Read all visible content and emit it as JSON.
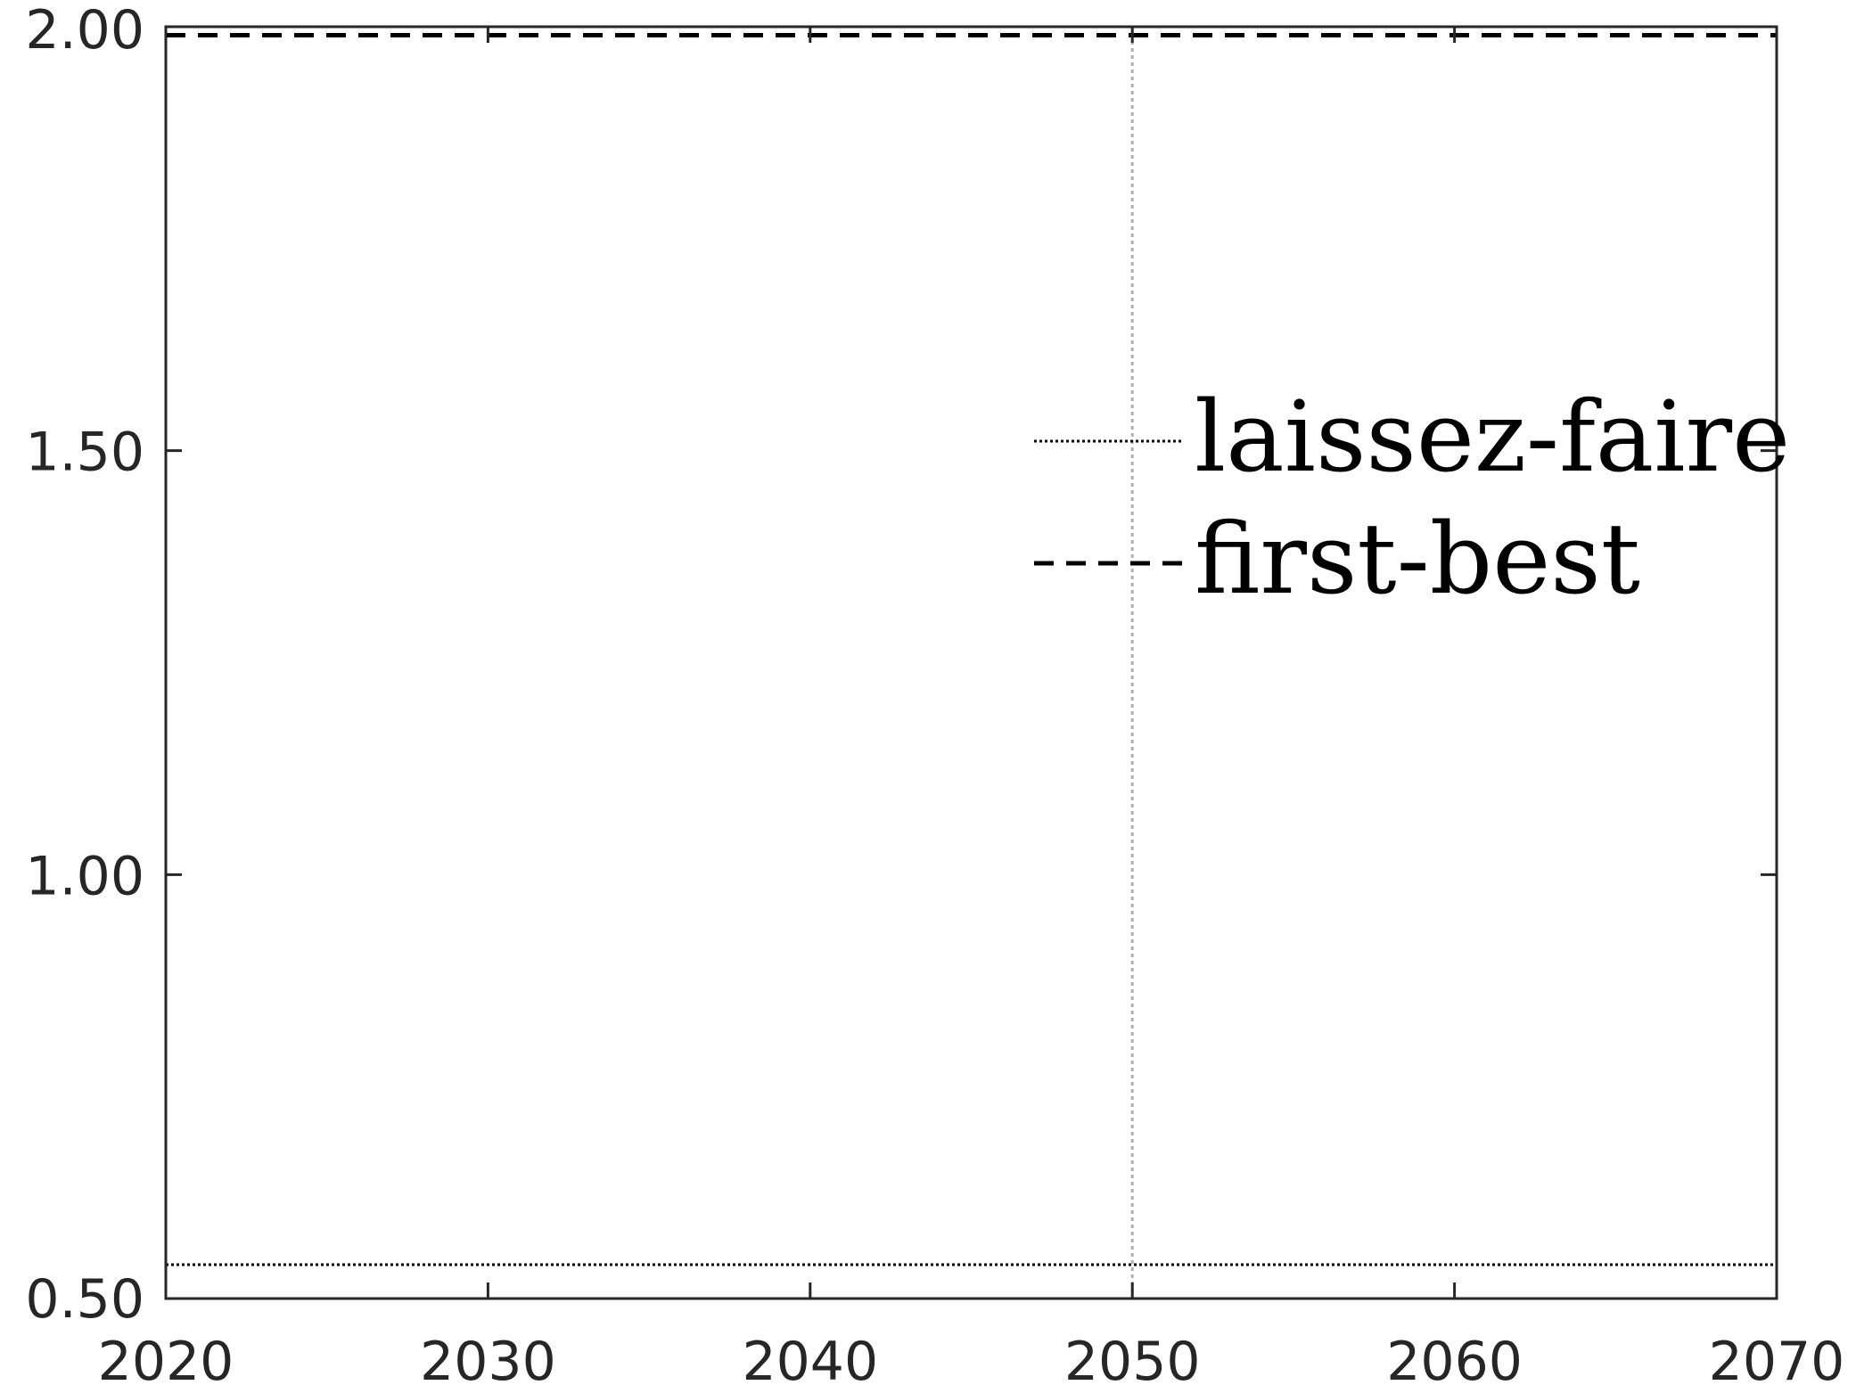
{
  "chart_data": {
    "type": "line",
    "title": "",
    "xlabel": "",
    "ylabel": "",
    "xlim": [
      2020,
      2070
    ],
    "ylim": [
      0.5,
      2.0
    ],
    "x_ticks": [
      2020,
      2030,
      2040,
      2050,
      2060,
      2070
    ],
    "x_tick_labels": [
      "2020",
      "2030",
      "2040",
      "2050",
      "2060",
      "2070"
    ],
    "y_ticks": [
      0.5,
      1.0,
      1.5,
      2.0
    ],
    "y_tick_labels": [
      "0.50",
      "1.00",
      "1.50",
      "2.00"
    ],
    "grid": false,
    "legend_position": "upper-right",
    "reference_line": {
      "orientation": "vertical",
      "x": 2050,
      "style": "dotted",
      "color": "#b3b3b3"
    },
    "series": [
      {
        "name": "laissez-faire",
        "style": "dotted",
        "color": "#000000",
        "x": [
          2020,
          2030,
          2040,
          2050,
          2060,
          2070
        ],
        "values": [
          0.54,
          0.54,
          0.54,
          0.54,
          0.54,
          0.54
        ]
      },
      {
        "name": "first-best",
        "style": "dashed",
        "color": "#000000",
        "x": [
          2020,
          2030,
          2040,
          2050,
          2060,
          2070
        ],
        "values": [
          1.99,
          1.99,
          1.99,
          1.99,
          1.99,
          1.99
        ]
      }
    ]
  }
}
